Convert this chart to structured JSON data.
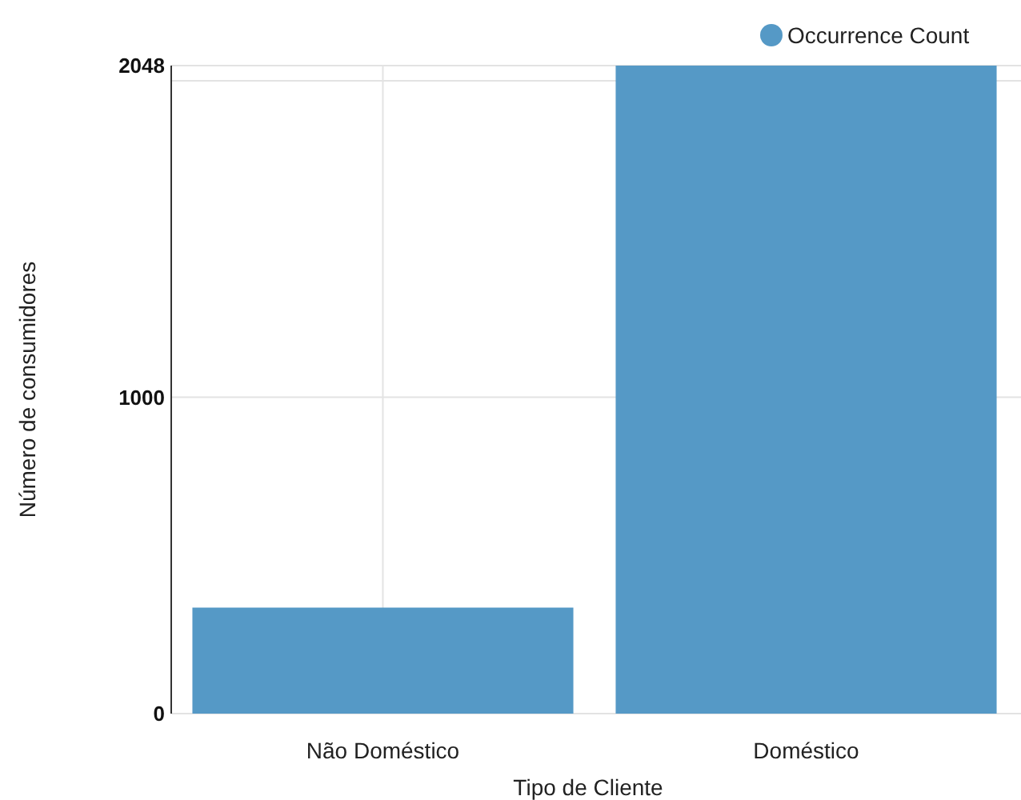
{
  "chart_data": {
    "type": "bar",
    "xlabel": "Tipo de Cliente",
    "ylabel": "Número de consumidores",
    "categories": [
      "Não Doméstico",
      "Doméstico"
    ],
    "series": [
      {
        "name": "Occurrence Count",
        "color": "#5599c6",
        "values": [
          335,
          2048
        ]
      }
    ],
    "ylim": [
      0,
      2048
    ],
    "yticks": [
      0,
      1000,
      {
        "value": 2000,
        "label": null
      },
      2048
    ],
    "grid": true,
    "legend": "top right"
  }
}
